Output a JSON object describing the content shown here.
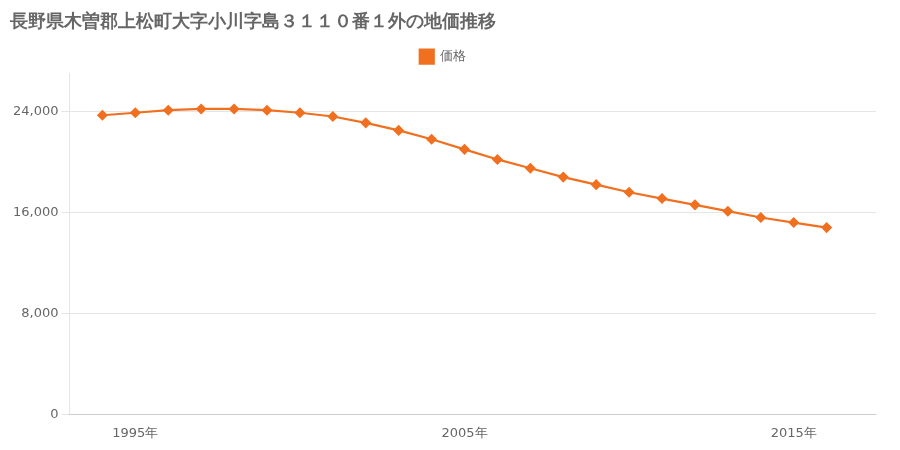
{
  "chart_data": {
    "type": "line",
    "title": "長野県木曽郡上松町大字小川字島３１１０番１外の地価推移",
    "x": [
      1994,
      1995,
      1996,
      1997,
      1998,
      1999,
      2000,
      2001,
      2002,
      2003,
      2004,
      2005,
      2006,
      2007,
      2008,
      2009,
      2010,
      2011,
      2012,
      2013,
      2014,
      2015,
      2016
    ],
    "series": [
      {
        "name": "価格",
        "color": "#f07020",
        "marker": "diamond",
        "values": [
          23700,
          23900,
          24100,
          24200,
          24200,
          24100,
          23900,
          23600,
          23100,
          22500,
          21800,
          21000,
          20200,
          19500,
          18800,
          18200,
          17600,
          17100,
          16600,
          16100,
          15600,
          15200,
          14800
        ]
      }
    ],
    "xlim": [
      1993.0,
      2017.5
    ],
    "xticks": [
      {
        "value": 1995,
        "label": "1995年"
      },
      {
        "value": 2005,
        "label": "2005年"
      },
      {
        "value": 2015,
        "label": "2015年"
      }
    ],
    "ylim": [
      0,
      27000
    ],
    "yticks": [
      0,
      {
        "value": 8000,
        "label": "8,000"
      },
      {
        "value": 16000,
        "label": "16,000"
      },
      {
        "value": 24000,
        "label": "24,000"
      }
    ],
    "grid": "y",
    "legend": "top"
  }
}
